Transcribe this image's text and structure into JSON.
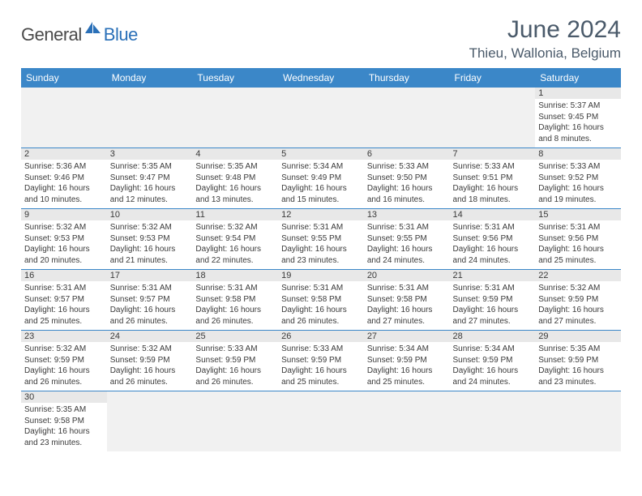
{
  "logo": {
    "part1": "General",
    "part2": "Blue"
  },
  "title": "June 2024",
  "location": "Thieu, Wallonia, Belgium",
  "colors": {
    "header_bg": "#3b87c8",
    "header_text": "#ffffff",
    "daynum_bg": "#e8e8e8",
    "empty_bg": "#f1f1f1",
    "border": "#3b87c8",
    "text": "#3a3a3a",
    "title_text": "#4a5a6a",
    "logo_blue": "#2a70b8"
  },
  "day_headers": [
    "Sunday",
    "Monday",
    "Tuesday",
    "Wednesday",
    "Thursday",
    "Friday",
    "Saturday"
  ],
  "weeks": [
    [
      null,
      null,
      null,
      null,
      null,
      null,
      {
        "n": "1",
        "sr": "Sunrise: 5:37 AM",
        "ss": "Sunset: 9:45 PM",
        "d1": "Daylight: 16 hours",
        "d2": "and 8 minutes."
      }
    ],
    [
      {
        "n": "2",
        "sr": "Sunrise: 5:36 AM",
        "ss": "Sunset: 9:46 PM",
        "d1": "Daylight: 16 hours",
        "d2": "and 10 minutes."
      },
      {
        "n": "3",
        "sr": "Sunrise: 5:35 AM",
        "ss": "Sunset: 9:47 PM",
        "d1": "Daylight: 16 hours",
        "d2": "and 12 minutes."
      },
      {
        "n": "4",
        "sr": "Sunrise: 5:35 AM",
        "ss": "Sunset: 9:48 PM",
        "d1": "Daylight: 16 hours",
        "d2": "and 13 minutes."
      },
      {
        "n": "5",
        "sr": "Sunrise: 5:34 AM",
        "ss": "Sunset: 9:49 PM",
        "d1": "Daylight: 16 hours",
        "d2": "and 15 minutes."
      },
      {
        "n": "6",
        "sr": "Sunrise: 5:33 AM",
        "ss": "Sunset: 9:50 PM",
        "d1": "Daylight: 16 hours",
        "d2": "and 16 minutes."
      },
      {
        "n": "7",
        "sr": "Sunrise: 5:33 AM",
        "ss": "Sunset: 9:51 PM",
        "d1": "Daylight: 16 hours",
        "d2": "and 18 minutes."
      },
      {
        "n": "8",
        "sr": "Sunrise: 5:33 AM",
        "ss": "Sunset: 9:52 PM",
        "d1": "Daylight: 16 hours",
        "d2": "and 19 minutes."
      }
    ],
    [
      {
        "n": "9",
        "sr": "Sunrise: 5:32 AM",
        "ss": "Sunset: 9:53 PM",
        "d1": "Daylight: 16 hours",
        "d2": "and 20 minutes."
      },
      {
        "n": "10",
        "sr": "Sunrise: 5:32 AM",
        "ss": "Sunset: 9:53 PM",
        "d1": "Daylight: 16 hours",
        "d2": "and 21 minutes."
      },
      {
        "n": "11",
        "sr": "Sunrise: 5:32 AM",
        "ss": "Sunset: 9:54 PM",
        "d1": "Daylight: 16 hours",
        "d2": "and 22 minutes."
      },
      {
        "n": "12",
        "sr": "Sunrise: 5:31 AM",
        "ss": "Sunset: 9:55 PM",
        "d1": "Daylight: 16 hours",
        "d2": "and 23 minutes."
      },
      {
        "n": "13",
        "sr": "Sunrise: 5:31 AM",
        "ss": "Sunset: 9:55 PM",
        "d1": "Daylight: 16 hours",
        "d2": "and 24 minutes."
      },
      {
        "n": "14",
        "sr": "Sunrise: 5:31 AM",
        "ss": "Sunset: 9:56 PM",
        "d1": "Daylight: 16 hours",
        "d2": "and 24 minutes."
      },
      {
        "n": "15",
        "sr": "Sunrise: 5:31 AM",
        "ss": "Sunset: 9:56 PM",
        "d1": "Daylight: 16 hours",
        "d2": "and 25 minutes."
      }
    ],
    [
      {
        "n": "16",
        "sr": "Sunrise: 5:31 AM",
        "ss": "Sunset: 9:57 PM",
        "d1": "Daylight: 16 hours",
        "d2": "and 25 minutes."
      },
      {
        "n": "17",
        "sr": "Sunrise: 5:31 AM",
        "ss": "Sunset: 9:57 PM",
        "d1": "Daylight: 16 hours",
        "d2": "and 26 minutes."
      },
      {
        "n": "18",
        "sr": "Sunrise: 5:31 AM",
        "ss": "Sunset: 9:58 PM",
        "d1": "Daylight: 16 hours",
        "d2": "and 26 minutes."
      },
      {
        "n": "19",
        "sr": "Sunrise: 5:31 AM",
        "ss": "Sunset: 9:58 PM",
        "d1": "Daylight: 16 hours",
        "d2": "and 26 minutes."
      },
      {
        "n": "20",
        "sr": "Sunrise: 5:31 AM",
        "ss": "Sunset: 9:58 PM",
        "d1": "Daylight: 16 hours",
        "d2": "and 27 minutes."
      },
      {
        "n": "21",
        "sr": "Sunrise: 5:31 AM",
        "ss": "Sunset: 9:59 PM",
        "d1": "Daylight: 16 hours",
        "d2": "and 27 minutes."
      },
      {
        "n": "22",
        "sr": "Sunrise: 5:32 AM",
        "ss": "Sunset: 9:59 PM",
        "d1": "Daylight: 16 hours",
        "d2": "and 27 minutes."
      }
    ],
    [
      {
        "n": "23",
        "sr": "Sunrise: 5:32 AM",
        "ss": "Sunset: 9:59 PM",
        "d1": "Daylight: 16 hours",
        "d2": "and 26 minutes."
      },
      {
        "n": "24",
        "sr": "Sunrise: 5:32 AM",
        "ss": "Sunset: 9:59 PM",
        "d1": "Daylight: 16 hours",
        "d2": "and 26 minutes."
      },
      {
        "n": "25",
        "sr": "Sunrise: 5:33 AM",
        "ss": "Sunset: 9:59 PM",
        "d1": "Daylight: 16 hours",
        "d2": "and 26 minutes."
      },
      {
        "n": "26",
        "sr": "Sunrise: 5:33 AM",
        "ss": "Sunset: 9:59 PM",
        "d1": "Daylight: 16 hours",
        "d2": "and 25 minutes."
      },
      {
        "n": "27",
        "sr": "Sunrise: 5:34 AM",
        "ss": "Sunset: 9:59 PM",
        "d1": "Daylight: 16 hours",
        "d2": "and 25 minutes."
      },
      {
        "n": "28",
        "sr": "Sunrise: 5:34 AM",
        "ss": "Sunset: 9:59 PM",
        "d1": "Daylight: 16 hours",
        "d2": "and 24 minutes."
      },
      {
        "n": "29",
        "sr": "Sunrise: 5:35 AM",
        "ss": "Sunset: 9:59 PM",
        "d1": "Daylight: 16 hours",
        "d2": "and 23 minutes."
      }
    ],
    [
      {
        "n": "30",
        "sr": "Sunrise: 5:35 AM",
        "ss": "Sunset: 9:58 PM",
        "d1": "Daylight: 16 hours",
        "d2": "and 23 minutes."
      },
      null,
      null,
      null,
      null,
      null,
      null
    ]
  ]
}
